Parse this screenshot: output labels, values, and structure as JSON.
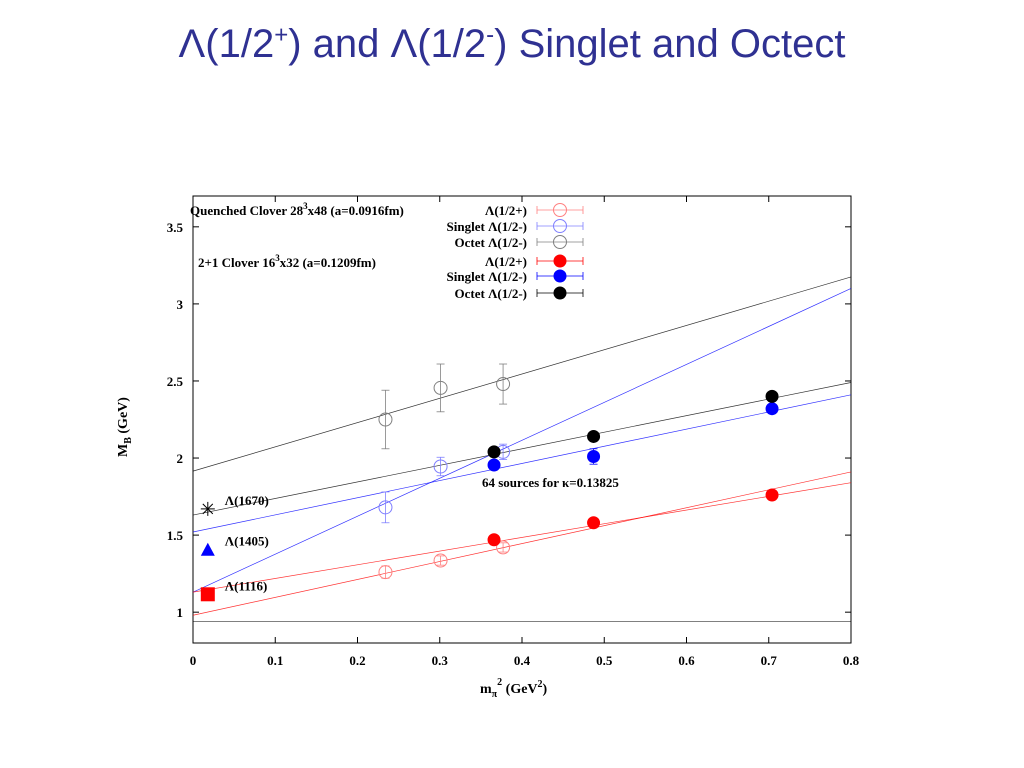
{
  "slide": {
    "title_a": "Λ(1/2",
    "title_a_sup": "+",
    "title_b": ") and Λ(1/2",
    "title_b_sup": "-",
    "title_c": ") Singlet and Octect"
  },
  "chart_data": {
    "type": "scatter",
    "xlabel": {
      "main": "m",
      "sub": "π",
      "sup": "2",
      "unit_pre": " (GeV",
      "unit_sup": "2",
      "unit_post": ")"
    },
    "ylabel": {
      "main": "M",
      "sub": "B",
      "unit": " (GeV)"
    },
    "xlim": [
      0,
      0.8
    ],
    "ylim": [
      0.8,
      3.7
    ],
    "xticks": [
      0,
      0.1,
      0.2,
      0.3,
      0.4,
      0.5,
      0.6,
      0.7,
      0.8
    ],
    "xtick_labels": [
      "0",
      "0.1",
      "0.2",
      "0.3",
      "0.4",
      "0.5",
      "0.6",
      "0.7",
      "0.8"
    ],
    "yticks": [
      1,
      1.5,
      2,
      2.5,
      3,
      3.5
    ],
    "ytick_labels": [
      "1",
      "1.5",
      "2",
      "2.5",
      "3",
      "3.5"
    ],
    "legend_placement": "top",
    "legend": {
      "quenched_header_pre": "Quenched Clover 28",
      "quenched_header_sup": "3",
      "quenched_header_post": "x48 (a=0.0916fm)",
      "dynamical_header_pre": "2+1 Clover 16",
      "dynamical_header_sup": "3",
      "dynamical_header_post": "x32 (a=0.1209fm)"
    },
    "series": [
      {
        "name": "Λ(1/2+)",
        "group": "quenched",
        "color": "#ff8080",
        "filled": false,
        "points": [
          {
            "x": 0.234,
            "y": 1.26,
            "err": 0.04
          },
          {
            "x": 0.301,
            "y": 1.335,
            "err": 0.03
          },
          {
            "x": 0.377,
            "y": 1.42,
            "err": 0.03
          }
        ]
      },
      {
        "name": "Singlet Λ(1/2-)",
        "group": "quenched",
        "color": "#8080ff",
        "filled": false,
        "points": [
          {
            "x": 0.234,
            "y": 1.68,
            "err": 0.1
          },
          {
            "x": 0.301,
            "y": 1.945,
            "err": 0.06
          },
          {
            "x": 0.377,
            "y": 2.04,
            "err": 0.05
          }
        ]
      },
      {
        "name": "Octet Λ(1/2-)",
        "group": "quenched",
        "color": "#808080",
        "filled": false,
        "points": [
          {
            "x": 0.234,
            "y": 2.25,
            "err": 0.19
          },
          {
            "x": 0.301,
            "y": 2.455,
            "err": 0.155
          },
          {
            "x": 0.377,
            "y": 2.48,
            "err": 0.13
          }
        ]
      },
      {
        "name": "Λ(1/2+)",
        "group": "dynamical",
        "color": "#ff0000",
        "filled": true,
        "points": [
          {
            "x": 0.366,
            "y": 1.47,
            "err": 0.02
          },
          {
            "x": 0.487,
            "y": 1.58,
            "err": 0.02
          },
          {
            "x": 0.704,
            "y": 1.76,
            "err": 0.02
          }
        ]
      },
      {
        "name": "Singlet Λ(1/2-)",
        "group": "dynamical",
        "color": "#0000ff",
        "filled": true,
        "points": [
          {
            "x": 0.366,
            "y": 1.955,
            "err": 0.03
          },
          {
            "x": 0.487,
            "y": 2.01,
            "err": 0.05
          },
          {
            "x": 0.704,
            "y": 2.32,
            "err": 0.03
          }
        ]
      },
      {
        "name": "Octet Λ(1/2-)",
        "group": "dynamical",
        "color": "#000000",
        "filled": true,
        "points": [
          {
            "x": 0.366,
            "y": 2.04,
            "err": 0.02
          },
          {
            "x": 0.487,
            "y": 2.14,
            "err": 0.02
          },
          {
            "x": 0.704,
            "y": 2.4,
            "err": 0.02
          }
        ]
      }
    ],
    "fit_lines": [
      {
        "color": "#000000",
        "x0": 0,
        "y0": 1.915,
        "x1": 0.8,
        "y1": 3.175
      },
      {
        "color": "#0000ff",
        "x0": 0,
        "y0": 1.13,
        "x1": 0.8,
        "y1": 3.1
      },
      {
        "color": "#000000",
        "x0": 0,
        "y0": 1.63,
        "x1": 0.8,
        "y1": 2.49
      },
      {
        "color": "#0000ff",
        "x0": 0,
        "y0": 1.52,
        "x1": 0.8,
        "y1": 2.41
      },
      {
        "color": "#ff0000",
        "x0": 0,
        "y0": 0.98,
        "x1": 0.8,
        "y1": 1.91
      },
      {
        "color": "#ff0000",
        "x0": 0,
        "y0": 1.13,
        "x1": 0.8,
        "y1": 1.84
      },
      {
        "color": "#000000",
        "x0": 0,
        "y0": 0.94,
        "x1": 0.8,
        "y1": 0.94
      }
    ],
    "experimental": [
      {
        "label": "Λ(1670)",
        "x": 0.018,
        "y": 1.67,
        "marker": "asterisk",
        "color": "#000000"
      },
      {
        "label": "Λ(1405)",
        "x": 0.018,
        "y": 1.405,
        "marker": "triangle",
        "color": "#0000ff"
      },
      {
        "label": "Λ(1116)",
        "x": 0.018,
        "y": 1.116,
        "marker": "square",
        "color": "#ff0000"
      }
    ],
    "annotation": {
      "pre": "64 sources for ",
      "kappa": "κ",
      "post": "=0.13825",
      "x": 0.52,
      "y": 1.87
    }
  }
}
